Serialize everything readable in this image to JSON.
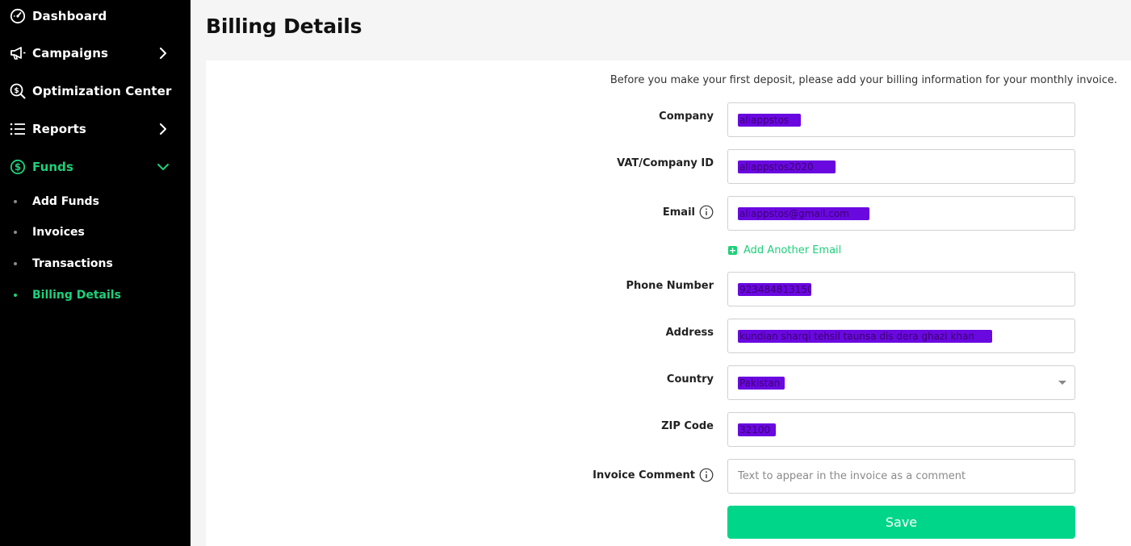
{
  "sidebar": {
    "items": [
      {
        "label": "Dashboard",
        "icon": "dashboard-gauge-icon"
      },
      {
        "label": "Campaigns",
        "icon": "megaphone-icon"
      },
      {
        "label": "Optimization Center",
        "icon": "magnifier-dollar-icon"
      },
      {
        "label": "Reports",
        "icon": "list-icon"
      },
      {
        "label": "Funds",
        "icon": "dollar-circle-icon"
      }
    ],
    "funds_sub": [
      {
        "label": "Add Funds"
      },
      {
        "label": "Invoices"
      },
      {
        "label": "Transactions"
      },
      {
        "label": "Billing Details"
      }
    ],
    "accent": "#1ed07a"
  },
  "page": {
    "title": "Billing Details",
    "intro": "Before you make your first deposit, please add your billing information for your monthly invoice."
  },
  "form": {
    "company": {
      "label": "Company",
      "value": "aliappstos"
    },
    "vat": {
      "label": "VAT/Company ID",
      "value": "aliappstos2020"
    },
    "email": {
      "label": "Email",
      "value": "aliappstos@gmail.com"
    },
    "add_email": "Add Another Email",
    "phone": {
      "label": "Phone Number",
      "value": "923484813150"
    },
    "address": {
      "label": "Address",
      "value": "kundian sharqi tehsil taunsa dis dera ghazi khan"
    },
    "country": {
      "label": "Country",
      "value": "Pakistan"
    },
    "zip": {
      "label": "ZIP Code",
      "value": "32100"
    },
    "comment": {
      "label": "Invoice Comment",
      "placeholder": "Text to appear in the invoice as a comment",
      "value": ""
    },
    "save_label": "Save"
  },
  "colors": {
    "save": "#00d68a",
    "redaction": "#6a08e0"
  }
}
